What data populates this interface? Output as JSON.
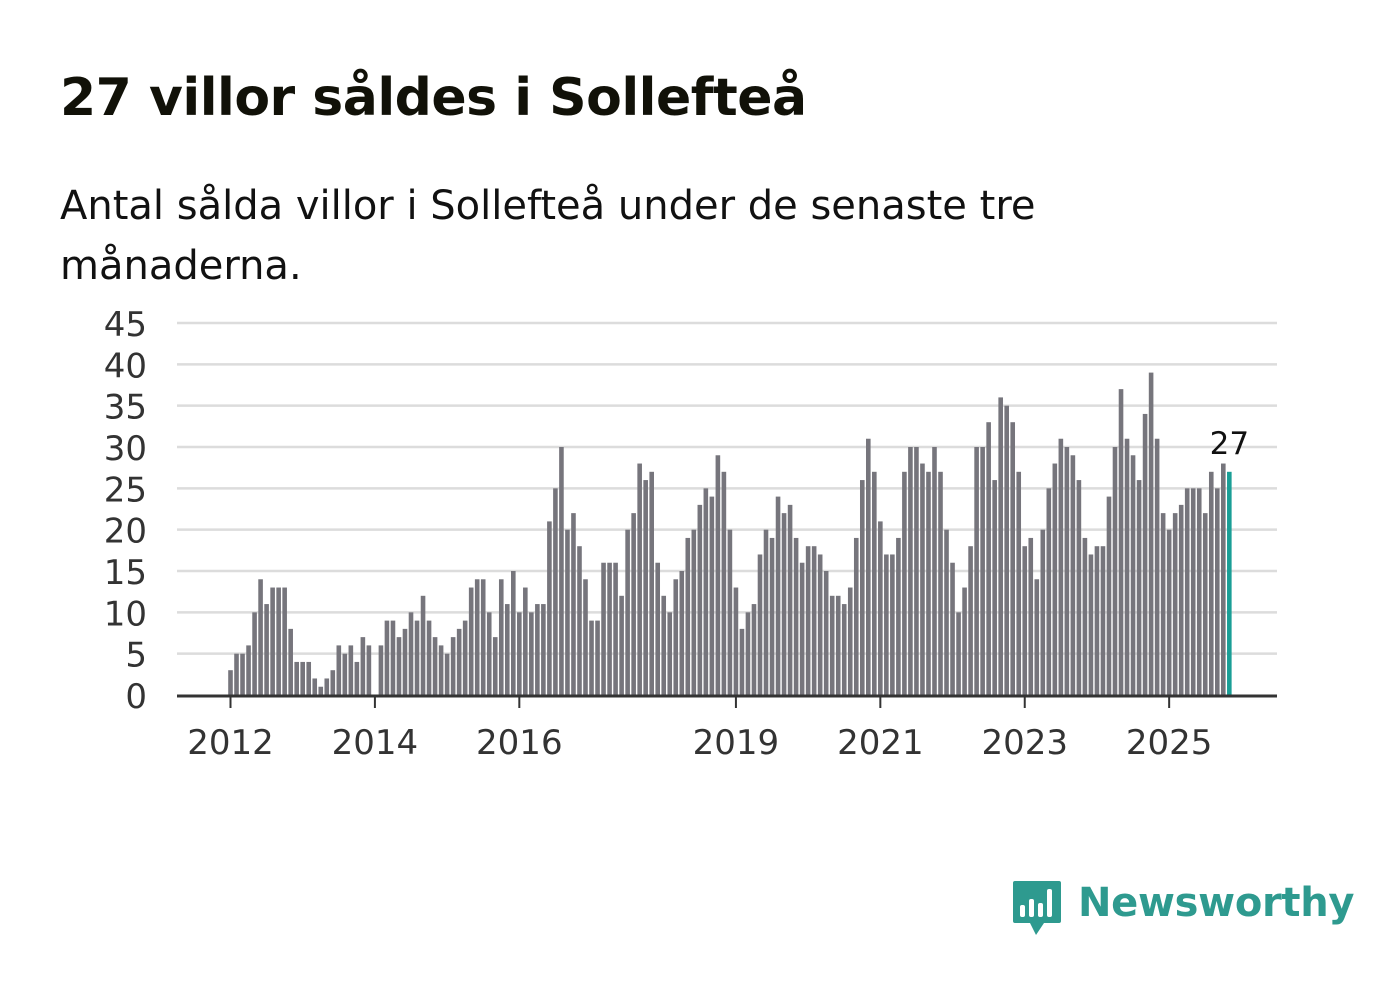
{
  "title": "27 villor såldes i Sollefteå",
  "subtitle": "Antal sålda villor i Sollefteå under de senaste tre månaderna.",
  "brand": {
    "name": "Newsworthy",
    "color": "#2e9a8f",
    "icon": "newsworthy-logo-icon"
  },
  "colors": {
    "bar": "#76757c",
    "highlight": "#1a9e96",
    "grid": "#dcdcdc",
    "axis": "#333333"
  },
  "chart_data": {
    "type": "bar",
    "title": "27 villor såldes i Sollefteå",
    "xlabel": "",
    "ylabel": "",
    "ylim": [
      0,
      45
    ],
    "yticks": [
      "0",
      "5",
      "10",
      "15",
      "20",
      "25",
      "30",
      "35",
      "40",
      "45"
    ],
    "ytick_values": [
      0,
      5,
      10,
      15,
      20,
      25,
      30,
      35,
      40,
      45
    ],
    "xticks": [
      {
        "label": "2012",
        "index": 0
      },
      {
        "label": "2014",
        "index": 24
      },
      {
        "label": "2016",
        "index": 48
      },
      {
        "label": "2019",
        "index": 84
      },
      {
        "label": "2021",
        "index": 108
      },
      {
        "label": "2023",
        "index": 132
      },
      {
        "label": "2025",
        "index": 156
      }
    ],
    "start_period": "2012-01",
    "period": "rolling 3 months, monthly",
    "grid": true,
    "highlight_last": true,
    "last_label": "27",
    "values": [
      3,
      5,
      5,
      6,
      10,
      14,
      11,
      13,
      13,
      13,
      8,
      4,
      4,
      4,
      2,
      1,
      2,
      3,
      6,
      5,
      6,
      4,
      7,
      6,
      0,
      6,
      9,
      9,
      7,
      8,
      10,
      9,
      12,
      9,
      7,
      6,
      5,
      7,
      8,
      9,
      13,
      14,
      14,
      10,
      7,
      14,
      11,
      15,
      10,
      13,
      10,
      11,
      11,
      21,
      25,
      30,
      20,
      22,
      18,
      14,
      9,
      9,
      16,
      16,
      16,
      12,
      20,
      22,
      28,
      26,
      27,
      16,
      12,
      10,
      14,
      15,
      19,
      20,
      23,
      25,
      24,
      29,
      27,
      20,
      13,
      8,
      10,
      11,
      17,
      20,
      19,
      24,
      22,
      23,
      19,
      16,
      18,
      18,
      17,
      15,
      12,
      12,
      11,
      13,
      19,
      26,
      31,
      27,
      21,
      17,
      17,
      19,
      27,
      30,
      30,
      28,
      27,
      30,
      27,
      20,
      16,
      10,
      13,
      18,
      30,
      30,
      33,
      26,
      36,
      35,
      33,
      27,
      18,
      19,
      14,
      20,
      25,
      28,
      31,
      30,
      29,
      26,
      19,
      17,
      18,
      18,
      24,
      30,
      37,
      31,
      29,
      26,
      34,
      39,
      31,
      22,
      20,
      22,
      23,
      25,
      25,
      25,
      22,
      27,
      25,
      28,
      27
    ]
  }
}
